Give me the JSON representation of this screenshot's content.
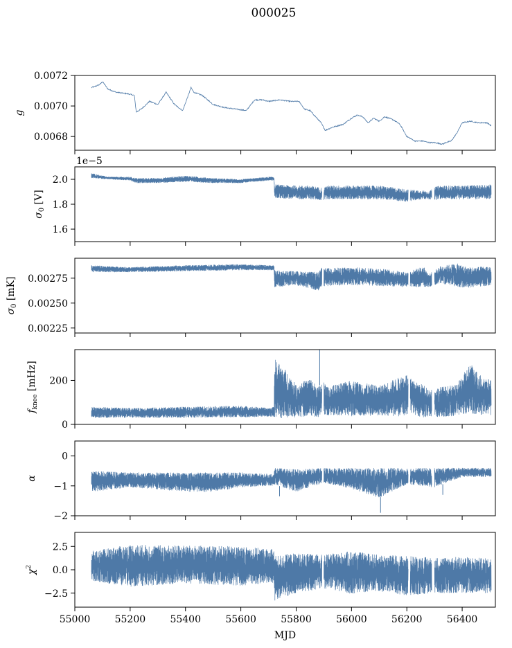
{
  "figure_title": "000025",
  "colors": {
    "series": "#4e79a7",
    "axes": "#000000",
    "background": "#ffffff"
  },
  "chart_data": [
    {
      "type": "line",
      "ylabel": "g",
      "xlim": [
        55000,
        56520
      ],
      "ylim": [
        0.00671,
        0.0072
      ],
      "yticks": [
        0.0068,
        0.007,
        0.0072
      ],
      "ytick_labels": [
        "0.0068",
        "0.0070",
        "0.0072"
      ],
      "show_xtick_labels": false,
      "series": [
        {
          "values_kind": "line",
          "x": [
            55060,
            55075,
            55090,
            55100,
            55120,
            55150,
            55190,
            55215,
            55222,
            55240,
            55270,
            55300,
            55330,
            55345,
            55360,
            55390,
            55420,
            55430,
            55460,
            55500,
            55540,
            55580,
            55620,
            55650,
            55680,
            55700,
            55740,
            55780,
            55810,
            55830,
            55850,
            55870,
            55890,
            55905,
            55930,
            55970,
            56000,
            56020,
            56040,
            56060,
            56080,
            56100,
            56120,
            56150,
            56175,
            56200,
            56230,
            56260,
            56280,
            56300,
            56330,
            56340,
            56360,
            56380,
            56400,
            56430,
            56460,
            56490,
            56505
          ],
          "y": [
            0.00712,
            0.00713,
            0.00714,
            0.00716,
            0.00711,
            0.00709,
            0.00708,
            0.00707,
            0.00696,
            0.00698,
            0.00703,
            0.00701,
            0.00709,
            0.00705,
            0.00701,
            0.00697,
            0.00712,
            0.00709,
            0.00707,
            0.00701,
            0.00699,
            0.00698,
            0.00697,
            0.00704,
            0.00704,
            0.00703,
            0.00704,
            0.00703,
            0.00703,
            0.00698,
            0.00697,
            0.00693,
            0.00689,
            0.00684,
            0.00686,
            0.00688,
            0.00692,
            0.00694,
            0.00693,
            0.00689,
            0.00692,
            0.0069,
            0.00693,
            0.00691,
            0.00688,
            0.0068,
            0.00677,
            0.00677,
            0.00676,
            0.00676,
            0.00675,
            0.00676,
            0.00677,
            0.00682,
            0.00689,
            0.0069,
            0.00689,
            0.00689,
            0.00687
          ],
          "noise": 3.5e-06
        }
      ]
    },
    {
      "type": "line",
      "ylabel": "σ0 [V]",
      "xlim": [
        55000,
        56520
      ],
      "ylim": [
        1.5,
        2.1
      ],
      "yticks": [
        1.6,
        1.8,
        2.0
      ],
      "ytick_labels": [
        "1.6",
        "1.8",
        "2.0"
      ],
      "offset_text": "1e−5",
      "show_xtick_labels": false,
      "series": [
        {
          "values_kind": "band",
          "x": [
            55060,
            55120,
            55200,
            55220,
            55300,
            55400,
            55500,
            55600,
            55700,
            55720,
            55722,
            55800,
            55850,
            55900,
            55910,
            56000,
            56100,
            56200,
            56260,
            56280,
            56300,
            56320,
            56400,
            56505
          ],
          "low": [
            2.01,
            2.0,
            1.99,
            1.97,
            1.97,
            1.98,
            1.97,
            1.97,
            1.99,
            1.99,
            1.85,
            1.84,
            1.84,
            1.83,
            1.84,
            1.84,
            1.84,
            1.82,
            1.84,
            1.84,
            1.83,
            1.84,
            1.84,
            1.84
          ],
          "high": [
            2.05,
            2.02,
            2.02,
            2.01,
            2.01,
            2.03,
            2.01,
            2.0,
            2.02,
            2.02,
            1.96,
            1.95,
            1.95,
            1.93,
            1.95,
            1.95,
            1.95,
            1.92,
            1.91,
            1.9,
            1.94,
            1.95,
            1.95,
            1.96
          ],
          "gaps": [
            [
              55893,
              55900
            ],
            [
              56205,
              56212
            ],
            [
              56290,
              56300
            ]
          ]
        }
      ]
    },
    {
      "type": "line",
      "ylabel": "σ0 [mK]",
      "xlim": [
        55000,
        56520
      ],
      "ylim": [
        0.0022,
        0.00295
      ],
      "yticks": [
        0.00225,
        0.0025,
        0.00275
      ],
      "ytick_labels": [
        "0.00225",
        "0.00250",
        "0.00275"
      ],
      "show_xtick_labels": false,
      "series": [
        {
          "values_kind": "band",
          "x": [
            55060,
            55200,
            55400,
            55600,
            55700,
            55720,
            55722,
            55800,
            55880,
            55900,
            55905,
            56000,
            56100,
            56200,
            56260,
            56280,
            56320,
            56380,
            56420,
            56505
          ],
          "low": [
            0.00281,
            0.00281,
            0.00282,
            0.00283,
            0.00283,
            0.00283,
            0.00266,
            0.00268,
            0.00262,
            0.00266,
            0.00267,
            0.00268,
            0.00267,
            0.00266,
            0.00266,
            0.00266,
            0.0027,
            0.00266,
            0.00265,
            0.00268
          ],
          "high": [
            0.00288,
            0.00286,
            0.00288,
            0.00289,
            0.00288,
            0.00288,
            0.00283,
            0.00282,
            0.00281,
            0.00288,
            0.00285,
            0.00286,
            0.00285,
            0.00281,
            0.00287,
            0.00279,
            0.00287,
            0.0029,
            0.00286,
            0.00287
          ],
          "gaps": [
            [
              55893,
              55900
            ],
            [
              56205,
              56212
            ],
            [
              56290,
              56300
            ]
          ]
        }
      ]
    },
    {
      "type": "line",
      "ylabel": "f_knee [mHz]",
      "xlim": [
        55000,
        56520
      ],
      "ylim": [
        0,
        340
      ],
      "yticks": [
        0,
        200
      ],
      "ytick_labels": [
        "0",
        "200"
      ],
      "show_xtick_labels": false,
      "series": [
        {
          "values_kind": "band",
          "x": [
            55060,
            55200,
            55400,
            55600,
            55700,
            55720,
            55722,
            55760,
            55800,
            55850,
            55880,
            55900,
            55910,
            56000,
            56100,
            56200,
            56220,
            56260,
            56280,
            56320,
            56380,
            56430,
            56460,
            56505
          ],
          "low": [
            30,
            30,
            30,
            32,
            35,
            35,
            20,
            30,
            30,
            40,
            30,
            40,
            40,
            35,
            40,
            35,
            45,
            30,
            35,
            30,
            40,
            50,
            40,
            40
          ],
          "high": [
            80,
            75,
            80,
            85,
            75,
            80,
            300,
            250,
            180,
            210,
            170,
            200,
            170,
            200,
            175,
            230,
            200,
            180,
            160,
            170,
            180,
            280,
            230,
            200
          ],
          "spikes": [
            [
              55885,
              345
            ]
          ],
          "gaps": [
            [
              55893,
              55900
            ],
            [
              56205,
              56212
            ],
            [
              56290,
              56300
            ]
          ]
        }
      ]
    },
    {
      "type": "line",
      "ylabel": "α",
      "xlim": [
        55000,
        56520
      ],
      "ylim": [
        -2.0,
        0.5
      ],
      "yticks": [
        -2,
        -1,
        0
      ],
      "ytick_labels": [
        "−2",
        "−1",
        "0"
      ],
      "show_xtick_labels": false,
      "series": [
        {
          "values_kind": "band",
          "x": [
            55060,
            55200,
            55400,
            55500,
            55600,
            55700,
            55720,
            55722,
            55800,
            55900,
            56000,
            56100,
            56200,
            56300,
            56400,
            56505
          ],
          "low": [
            -1.2,
            -1.05,
            -1.2,
            -1.2,
            -1.05,
            -1.0,
            -1.0,
            -0.95,
            -1.2,
            -0.9,
            -1.1,
            -1.4,
            -0.95,
            -1.05,
            -0.7,
            -0.7
          ],
          "high": [
            -0.5,
            -0.55,
            -0.55,
            -0.55,
            -0.55,
            -0.6,
            -0.6,
            -0.4,
            -0.45,
            -0.4,
            -0.4,
            -0.4,
            -0.4,
            -0.4,
            -0.4,
            -0.4
          ],
          "spikes": [
            [
              56105,
              -1.9
            ],
            [
              55740,
              -1.35
            ],
            [
              56330,
              -1.3
            ]
          ],
          "gaps": [
            [
              55893,
              55900
            ],
            [
              56205,
              56212
            ],
            [
              56290,
              56300
            ]
          ]
        }
      ]
    },
    {
      "type": "line",
      "ylabel": "χ²",
      "xlabel": "MJD",
      "xlim": [
        55000,
        56520
      ],
      "ylim": [
        -4.0,
        4.0
      ],
      "yticks": [
        -2.5,
        0.0,
        2.5
      ],
      "ytick_labels": [
        "−2.5",
        "0.0",
        "2.5"
      ],
      "xticks": [
        55000,
        55200,
        55400,
        55600,
        55800,
        56000,
        56200,
        56400
      ],
      "xtick_labels": [
        "55000",
        "55200",
        "55400",
        "55600",
        "55800",
        "56000",
        "56200",
        "56400"
      ],
      "show_xtick_labels": true,
      "series": [
        {
          "values_kind": "band",
          "x": [
            55060,
            55200,
            55400,
            55600,
            55720,
            55722,
            55800,
            55900,
            56000,
            56100,
            56200,
            56300,
            56400,
            56505
          ],
          "low": [
            -1.2,
            -1.8,
            -1.5,
            -1.7,
            -1.4,
            -3.3,
            -2.5,
            -2.0,
            -2.6,
            -2.3,
            -2.8,
            -2.5,
            -2.5,
            -2.5
          ],
          "high": [
            2.0,
            2.7,
            2.6,
            2.5,
            2.2,
            1.5,
            1.8,
            1.6,
            2.0,
            1.6,
            1.5,
            1.3,
            1.4,
            1.2
          ],
          "gaps": [
            [
              55893,
              55900
            ],
            [
              56205,
              56212
            ],
            [
              56290,
              56300
            ]
          ]
        }
      ]
    }
  ]
}
